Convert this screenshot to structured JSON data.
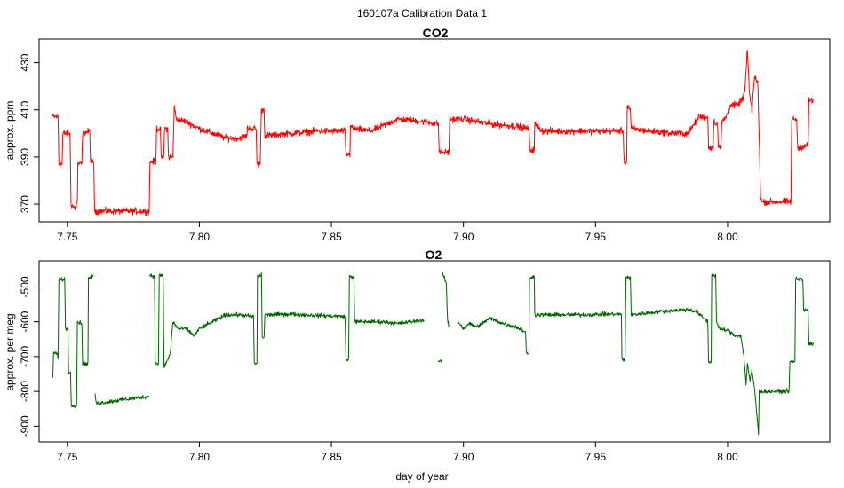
{
  "figure": {
    "title": "160107a   Calibration Data 1"
  },
  "chart_data": [
    {
      "type": "line",
      "title": "CO2",
      "xlabel": "",
      "ylabel": "approx. ppm",
      "xlim": [
        7.7393,
        8.0387
      ],
      "ylim": [
        362.5,
        440.0
      ],
      "x_ticks": [
        7.75,
        7.8,
        7.85,
        7.9,
        7.95,
        8.0
      ],
      "x_tick_labels": [
        "7.75",
        "7.80",
        "7.85",
        "7.90",
        "7.95",
        "8.00"
      ],
      "y_ticks": [
        370,
        390,
        410,
        430
      ],
      "y_tick_labels": [
        "370",
        "390",
        "410",
        "430"
      ],
      "series": [
        {
          "color": "#ff0000",
          "noise": 1.2,
          "points": [
            [
              7.7445,
              407
            ],
            [
              7.7465,
              407
            ],
            [
              7.7468,
              387
            ],
            [
              7.748,
              387
            ],
            [
              7.7483,
              400
            ],
            [
              7.751,
              400
            ],
            [
              7.7514,
              370
            ],
            [
              7.7532,
              368
            ],
            [
              7.7538,
              372
            ],
            [
              7.754,
              387
            ],
            [
              7.7555,
              387
            ],
            [
              7.7558,
              400
            ],
            [
              7.7585,
              401
            ],
            [
              7.7588,
              388
            ],
            [
              7.76,
              388
            ],
            [
              7.7603,
              367
            ],
            [
              7.781,
              367
            ],
            [
              7.7813,
              388
            ],
            [
              7.7835,
              388
            ],
            [
              7.7838,
              402
            ],
            [
              7.7852,
              402
            ],
            [
              7.7855,
              390
            ],
            [
              7.7865,
              390
            ],
            [
              7.7868,
              402
            ],
            [
              7.788,
              402
            ],
            [
              7.7883,
              390
            ],
            [
              7.79,
              390
            ],
            [
              7.7905,
              412
            ],
            [
              7.7912,
              406
            ],
            [
              7.795,
              405
            ],
            [
              7.8,
              402
            ],
            [
              7.805,
              400
            ],
            [
              7.81,
              398
            ],
            [
              7.815,
              398
            ],
            [
              7.818,
              399
            ],
            [
              7.8182,
              402
            ],
            [
              7.8215,
              402
            ],
            [
              7.8218,
              387
            ],
            [
              7.823,
              387
            ],
            [
              7.8235,
              410
            ],
            [
              7.8245,
              410
            ],
            [
              7.8248,
              399
            ],
            [
              7.835,
              400
            ],
            [
              7.845,
              401
            ],
            [
              7.8552,
              401
            ],
            [
              7.8555,
              391
            ],
            [
              7.857,
              391
            ],
            [
              7.8572,
              404
            ],
            [
              7.858,
              402
            ],
            [
              7.865,
              401
            ],
            [
              7.875,
              406
            ],
            [
              7.885,
              405
            ],
            [
              7.8905,
              404
            ],
            [
              7.8908,
              392
            ],
            [
              7.8945,
              392
            ],
            [
              7.8948,
              406
            ],
            [
              7.9,
              406
            ],
            [
              7.91,
              404
            ],
            [
              7.92,
              403
            ],
            [
              7.9248,
              402
            ],
            [
              7.9251,
              393
            ],
            [
              7.9268,
              393
            ],
            [
              7.927,
              404
            ],
            [
              7.93,
              401
            ],
            [
              7.94,
              401
            ],
            [
              7.95,
              401
            ],
            [
              7.9605,
              401
            ],
            [
              7.9608,
              388
            ],
            [
              7.9618,
              388
            ],
            [
              7.962,
              412
            ],
            [
              7.9632,
              410
            ],
            [
              7.9635,
              402
            ],
            [
              7.97,
              401
            ],
            [
              7.98,
              400
            ],
            [
              7.985,
              400
            ],
            [
              7.9875,
              404
            ],
            [
              7.989,
              407
            ],
            [
              7.9925,
              407
            ],
            [
              7.9928,
              394
            ],
            [
              7.9945,
              394
            ],
            [
              7.9948,
              405
            ],
            [
              7.9962,
              404
            ],
            [
              7.9965,
              394
            ],
            [
              7.9975,
              394
            ],
            [
              7.9978,
              405
            ],
            [
              7.9995,
              407
            ],
            [
              8.001,
              412
            ],
            [
              8.004,
              412
            ],
            [
              8.0058,
              415
            ],
            [
              8.0065,
              418
            ],
            [
              8.007,
              426
            ],
            [
              8.0075,
              436
            ],
            [
              8.0082,
              418
            ],
            [
              8.0092,
              410
            ],
            [
              8.0102,
              424
            ],
            [
              8.0115,
              421
            ],
            [
              8.0125,
              373
            ],
            [
              8.013,
              371
            ],
            [
              8.024,
              371
            ],
            [
              8.0243,
              406
            ],
            [
              8.0262,
              406
            ],
            [
              8.0265,
              394
            ],
            [
              8.0305,
              395
            ],
            [
              8.0308,
              414
            ],
            [
              8.0325,
              414
            ]
          ]
        }
      ]
    },
    {
      "type": "line",
      "title": "O2",
      "xlabel": "day of year",
      "ylabel": "approx. per meg",
      "xlim": [
        7.7393,
        8.0387
      ],
      "ylim": [
        -945,
        -425
      ],
      "x_ticks": [
        7.75,
        7.8,
        7.85,
        7.9,
        7.95,
        8.0
      ],
      "x_tick_labels": [
        "7.75",
        "7.80",
        "7.85",
        "7.90",
        "7.95",
        "8.00"
      ],
      "y_ticks": [
        -900,
        -800,
        -700,
        -600,
        -500
      ],
      "y_tick_labels": [
        "-900",
        "-800",
        "-700",
        "-600",
        "-500"
      ],
      "series": [
        {
          "color": "#006400",
          "noise": 5,
          "segments": [
            [
              [
                7.7445,
                -765
              ],
              [
                7.7448,
                -690
              ],
              [
                7.7462,
                -690
              ],
              [
                7.7465,
                -710
              ],
              [
                7.7468,
                -480
              ],
              [
                7.749,
                -478
              ],
              [
                7.7493,
                -620
              ],
              [
                7.7502,
                -620
              ],
              [
                7.7505,
                -745
              ],
              [
                7.7512,
                -748
              ],
              [
                7.7515,
                -840
              ],
              [
                7.7535,
                -840
              ],
              [
                7.7538,
                -600
              ],
              [
                7.7555,
                -605
              ],
              [
                7.7558,
                -720
              ],
              [
                7.7578,
                -720
              ],
              [
                7.758,
                -475
              ],
              [
                7.7598,
                -470
              ]
            ],
            [
              [
                7.7605,
                -810
              ],
              [
                7.761,
                -835
              ],
              [
                7.77,
                -825
              ],
              [
                7.78,
                -815
              ],
              [
                7.781,
                -815
              ]
            ],
            [
              [
                7.7812,
                -465
              ],
              [
                7.783,
                -470
              ],
              [
                7.7833,
                -720
              ],
              [
                7.7845,
                -720
              ],
              [
                7.7848,
                -465
              ],
              [
                7.7863,
                -470
              ],
              [
                7.7866,
                -730
              ],
              [
                7.788,
                -710
              ],
              [
                7.789,
                -690
              ],
              [
                7.7895,
                -640
              ],
              [
                7.79,
                -600
              ],
              [
                7.792,
                -620
              ],
              [
                7.795,
                -620
              ],
              [
                7.798,
                -640
              ],
              [
                7.8,
                -620
              ],
              [
                7.805,
                -600
              ],
              [
                7.81,
                -580
              ],
              [
                7.815,
                -580
              ],
              [
                7.8205,
                -585
              ],
              [
                7.8208,
                -720
              ],
              [
                7.8218,
                -720
              ],
              [
                7.822,
                -470
              ],
              [
                7.8235,
                -465
              ],
              [
                7.8238,
                -645
              ],
              [
                7.8245,
                -645
              ],
              [
                7.8248,
                -580
              ],
              [
                7.835,
                -578
              ],
              [
                7.845,
                -582
              ],
              [
                7.8552,
                -585
              ],
              [
                7.8555,
                -710
              ],
              [
                7.8565,
                -710
              ],
              [
                7.8568,
                -470
              ],
              [
                7.8585,
                -472
              ],
              [
                7.8588,
                -600
              ],
              [
                7.865,
                -600
              ],
              [
                7.87,
                -600
              ],
              [
                7.875,
                -605
              ],
              [
                7.88,
                -600
              ],
              [
                7.885,
                -595
              ]
            ],
            [
              [
                7.8905,
                -715
              ],
              [
                7.8915,
                -710
              ],
              [
                7.8918,
                -720
              ]
            ],
            [
              [
                7.892,
                -460
              ],
              [
                7.8935,
                -490
              ],
              [
                7.894,
                -600
              ],
              [
                7.8945,
                -610
              ]
            ],
            [
              [
                7.898,
                -600
              ],
              [
                7.9,
                -620
              ],
              [
                7.902,
                -605
              ],
              [
                7.905,
                -615
              ],
              [
                7.91,
                -590
              ],
              [
                7.915,
                -605
              ],
              [
                7.92,
                -615
              ],
              [
                7.9235,
                -630
              ],
              [
                7.9238,
                -690
              ],
              [
                7.9248,
                -690
              ],
              [
                7.925,
                -480
              ],
              [
                7.9268,
                -465
              ],
              [
                7.927,
                -580
              ],
              [
                7.935,
                -580
              ],
              [
                7.945,
                -580
              ],
              [
                7.955,
                -578
              ],
              [
                7.9598,
                -578
              ],
              [
                7.96,
                -710
              ],
              [
                7.9612,
                -710
              ],
              [
                7.9615,
                -470
              ],
              [
                7.9632,
                -475
              ],
              [
                7.9635,
                -580
              ],
              [
                7.975,
                -570
              ],
              [
                7.985,
                -565
              ],
              [
                7.988,
                -570
              ],
              [
                7.9925,
                -600
              ],
              [
                7.9928,
                -715
              ],
              [
                7.9938,
                -715
              ],
              [
                7.994,
                -465
              ],
              [
                7.9955,
                -468
              ],
              [
                7.9958,
                -600
              ],
              [
                7.997,
                -620
              ],
              [
                8.0,
                -625
              ],
              [
                8.003,
                -640
              ],
              [
                8.005,
                -640
              ],
              [
                8.0062,
                -700
              ],
              [
                8.007,
                -780
              ],
              [
                8.0075,
                -720
              ],
              [
                8.0085,
                -770
              ],
              [
                8.0092,
                -740
              ],
              [
                8.0102,
                -790
              ],
              [
                8.011,
                -860
              ],
              [
                8.0117,
                -920
              ],
              [
                8.012,
                -800
              ],
              [
                8.02,
                -800
              ],
              [
                8.0233,
                -798
              ],
              [
                8.0236,
                -715
              ],
              [
                8.0255,
                -715
              ],
              [
                8.0258,
                -475
              ],
              [
                8.0285,
                -480
              ],
              [
                8.0288,
                -565
              ],
              [
                8.0305,
                -565
              ],
              [
                8.0308,
                -665
              ],
              [
                8.0325,
                -665
              ]
            ]
          ]
        }
      ]
    }
  ]
}
